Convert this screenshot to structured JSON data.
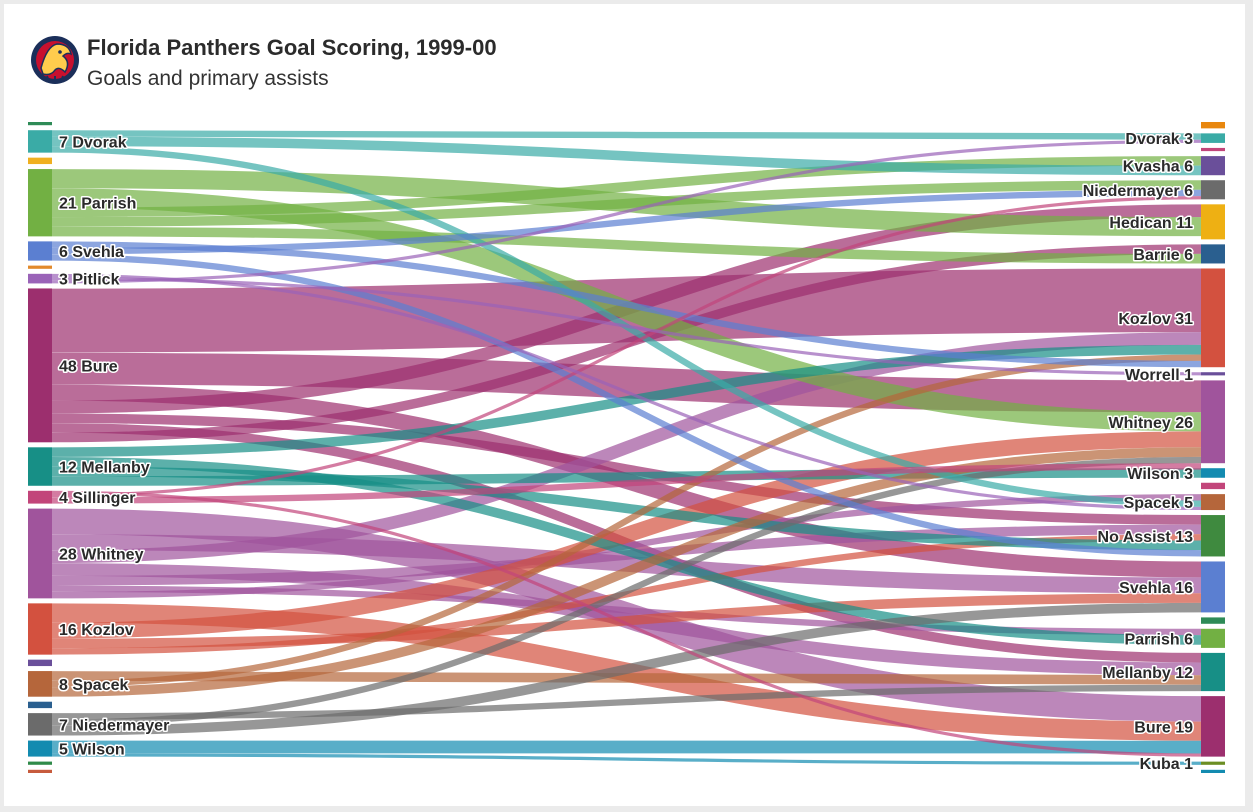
{
  "header": {
    "title": "Florida Panthers Goal Scoring, 1999-00",
    "subtitle": "Goals and primary assists",
    "logo_icon": "florida-panthers-logo-icon"
  },
  "chart_data": {
    "type": "sankey",
    "title": "Florida Panthers Goal Scoring, 1999-00",
    "subtitle": "Goals and primary assists",
    "left_axis": "goal scorers (label shows goals then name)",
    "right_axis": "primary assister (label shows name then primary assists)",
    "sources": [
      {
        "name": "",
        "value": 1,
        "color": "#2e8b57"
      },
      {
        "name": "Dvorak",
        "value": 7,
        "color": "#3aaba6"
      },
      {
        "name": "",
        "value": 2,
        "color": "#f0b020"
      },
      {
        "name": "Parrish",
        "value": 21,
        "color": "#72b043"
      },
      {
        "name": "Svehla",
        "value": 6,
        "color": "#5b7fd1"
      },
      {
        "name": "",
        "value": 1,
        "color": "#e28a2c"
      },
      {
        "name": "Pitlick",
        "value": 3,
        "color": "#9a63b8"
      },
      {
        "name": "Bure",
        "value": 48,
        "color": "#9c2f6e"
      },
      {
        "name": "Mellanby",
        "value": 12,
        "color": "#178f86"
      },
      {
        "name": "Sillinger",
        "value": 4,
        "color": "#c2457a"
      },
      {
        "name": "Whitney",
        "value": 28,
        "color": "#a0549c"
      },
      {
        "name": "Kozlov",
        "value": 16,
        "color": "#d3513f"
      },
      {
        "name": "",
        "value": 2,
        "color": "#6a4f9a"
      },
      {
        "name": "Spacek",
        "value": 8,
        "color": "#b5663b"
      },
      {
        "name": "",
        "value": 2,
        "color": "#2a5f8f"
      },
      {
        "name": "Niedermayer",
        "value": 7,
        "color": "#6b6b6b"
      },
      {
        "name": "Wilson",
        "value": 5,
        "color": "#138bb0"
      },
      {
        "name": "",
        "value": 1,
        "color": "#2f8a49"
      },
      {
        "name": "",
        "value": 1,
        "color": "#c75b3d"
      }
    ],
    "targets": [
      {
        "name": "",
        "value": 2,
        "color": "#e8870e"
      },
      {
        "name": "Dvorak",
        "value": 3,
        "color": "#3aaba6"
      },
      {
        "name": "",
        "value": 1,
        "color": "#c2457a"
      },
      {
        "name": "Kvasha",
        "value": 6,
        "color": "#6a4f9a"
      },
      {
        "name": "Niedermayer",
        "value": 6,
        "color": "#6b6b6b"
      },
      {
        "name": "Hedican",
        "value": 11,
        "color": "#eeb013"
      },
      {
        "name": "Barrie",
        "value": 6,
        "color": "#2a5f8f"
      },
      {
        "name": "Kozlov",
        "value": 31,
        "color": "#d3513f"
      },
      {
        "name": "Worrell",
        "value": 1,
        "color": "#6a4f9a"
      },
      {
        "name": "Whitney",
        "value": 26,
        "color": "#a0549c"
      },
      {
        "name": "Wilson",
        "value": 3,
        "color": "#138bb0"
      },
      {
        "name": "",
        "value": 2,
        "color": "#c2457a"
      },
      {
        "name": "Spacek",
        "value": 5,
        "color": "#b5663b"
      },
      {
        "name": "No Assist",
        "value": 13,
        "color": "#3f8a3f"
      },
      {
        "name": "Svehla",
        "value": 16,
        "color": "#5b7fd1"
      },
      {
        "name": "",
        "value": 2,
        "color": "#2e8b57"
      },
      {
        "name": "Parrish",
        "value": 6,
        "color": "#72b043"
      },
      {
        "name": "Mellanby",
        "value": 12,
        "color": "#178f86"
      },
      {
        "name": "Bure",
        "value": 19,
        "color": "#9c2f6e"
      },
      {
        "name": "Kuba",
        "value": 1,
        "color": "#6b8e23"
      },
      {
        "name": "",
        "value": 1,
        "color": "#138bb0"
      }
    ],
    "left_labels": [
      "7 Dvorak",
      "21 Parrish",
      "6 Svehla",
      "3 Pitlick",
      "48 Bure",
      "12 Mellanby",
      "4 Sillinger",
      "28 Whitney",
      "16 Kozlov",
      "8 Spacek",
      "7 Niedermayer",
      "5 Wilson"
    ],
    "right_labels": [
      "Dvorak 3",
      "Kvasha 6",
      "Niedermayer 6",
      "Hedican 11",
      "Barrie 6",
      "Kozlov 31",
      "Worrell 1",
      "Whitney 26",
      "Wilson 3",
      "Spacek 5",
      "No Assist 13",
      "Svehla 16",
      "Parrish 6",
      "Mellanby 12",
      "Bure 19",
      "Kuba 1"
    ],
    "links": [
      {
        "source": "Bure",
        "target": "Kozlov",
        "value": 20
      },
      {
        "source": "Bure",
        "target": "Whitney",
        "value": 10
      },
      {
        "source": "Bure",
        "target": "Svehla",
        "value": 5
      },
      {
        "source": "Bure",
        "target": "Hedican",
        "value": 4
      },
      {
        "source": "Bure",
        "target": "No Assist",
        "value": 3
      },
      {
        "source": "Bure",
        "target": "Mellanby",
        "value": 3
      },
      {
        "source": "Bure",
        "target": "Barrie",
        "value": 3
      },
      {
        "source": "Whitney",
        "target": "Bure",
        "value": 8
      },
      {
        "source": "Whitney",
        "target": "Svehla",
        "value": 5
      },
      {
        "source": "Whitney",
        "target": "Kozlov",
        "value": 4
      },
      {
        "source": "Whitney",
        "target": "Mellanby",
        "value": 4
      },
      {
        "source": "Whitney",
        "target": "No Assist",
        "value": 3
      },
      {
        "source": "Whitney",
        "target": "Parrish",
        "value": 2
      },
      {
        "source": "Whitney",
        "target": "Spacek",
        "value": 2
      },
      {
        "source": "Parrish",
        "target": "Hedican",
        "value": 6
      },
      {
        "source": "Parrish",
        "target": "Whitney",
        "value": 6
      },
      {
        "source": "Parrish",
        "target": "Kvasha",
        "value": 3
      },
      {
        "source": "Parrish",
        "target": "Niedermayer",
        "value": 3
      },
      {
        "source": "Parrish",
        "target": "Barrie",
        "value": 3
      },
      {
        "source": "Kozlov",
        "target": "Bure",
        "value": 6
      },
      {
        "source": "Kozlov",
        "target": "Whitney",
        "value": 5
      },
      {
        "source": "Kozlov",
        "target": "Svehla",
        "value": 3
      },
      {
        "source": "Kozlov",
        "target": "No Assist",
        "value": 2
      },
      {
        "source": "Mellanby",
        "target": "Kozlov",
        "value": 3
      },
      {
        "source": "Mellanby",
        "target": "Parrish",
        "value": 3
      },
      {
        "source": "Mellanby",
        "target": "No Assist",
        "value": 3
      },
      {
        "source": "Mellanby",
        "target": "Wilson",
        "value": 3
      },
      {
        "source": "Spacek",
        "target": "Mellanby",
        "value": 3
      },
      {
        "source": "Spacek",
        "target": "Kozlov",
        "value": 2
      },
      {
        "source": "Spacek",
        "target": "Whitney",
        "value": 3
      },
      {
        "source": "Niedermayer",
        "target": "Mellanby",
        "value": 2
      },
      {
        "source": "Niedermayer",
        "target": "Whitney",
        "value": 2
      },
      {
        "source": "Niedermayer",
        "target": "Svehla",
        "value": 3
      },
      {
        "source": "Dvorak",
        "target": "Dvorak",
        "value": 2
      },
      {
        "source": "Dvorak",
        "target": "Kvasha",
        "value": 3
      },
      {
        "source": "Dvorak",
        "target": "Spacek",
        "value": 2
      },
      {
        "source": "Svehla",
        "target": "Kozlov",
        "value": 2
      },
      {
        "source": "Svehla",
        "target": "Niedermayer",
        "value": 2
      },
      {
        "source": "Svehla",
        "target": "No Assist",
        "value": 2
      },
      {
        "source": "Wilson",
        "target": "Bure",
        "value": 4
      },
      {
        "source": "Wilson",
        "target": "Kuba",
        "value": 1
      },
      {
        "source": "Sillinger",
        "target": "Bure",
        "value": 1
      },
      {
        "source": "Sillinger",
        "target": "Niedermayer",
        "value": 1
      },
      {
        "source": "Sillinger",
        "target": "Whitney",
        "value": 2
      },
      {
        "source": "Pitlick",
        "target": "Spacek",
        "value": 1
      },
      {
        "source": "Pitlick",
        "target": "Worrell",
        "value": 1
      },
      {
        "source": "Pitlick",
        "target": "Dvorak",
        "value": 1
      }
    ]
  }
}
